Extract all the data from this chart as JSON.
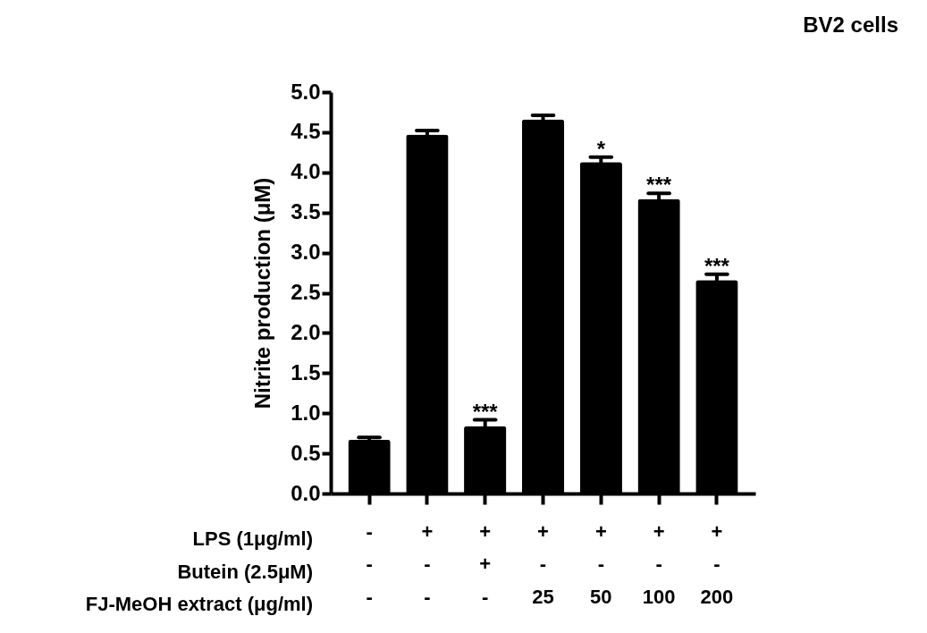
{
  "chart_data": {
    "type": "bar",
    "title": "BV2 cells",
    "ylabel": "Nitrite production (μM)",
    "categories": [
      "-\n-\n-",
      "+\n-\n-",
      "+\n+\n-",
      "+\n-\n25",
      "+\n-\n50",
      "+\n-\n100",
      "+\n-\n200"
    ],
    "values": [
      0.67,
      4.47,
      0.84,
      4.66,
      4.13,
      3.67,
      2.66
    ],
    "errors": [
      0.03,
      0.05,
      0.08,
      0.05,
      0.06,
      0.07,
      0.07
    ],
    "color": "#000000",
    "ylim": [
      0,
      5
    ],
    "yticks": [
      {
        "value": 0,
        "label": "0.0"
      },
      {
        "value": 0.5,
        "label": "0.5"
      },
      {
        "value": 1,
        "label": "1.0"
      },
      {
        "value": 1.5,
        "label": "1.5"
      },
      {
        "value": 2,
        "label": "2.0"
      },
      {
        "value": 2.5,
        "label": "2.5"
      },
      {
        "value": 3,
        "label": "3.0"
      },
      {
        "value": 3.5,
        "label": "3.5"
      },
      {
        "value": 4,
        "label": "4.0"
      },
      {
        "value": 4.5,
        "label": "4.5"
      },
      {
        "value": 5,
        "label": "5.0"
      }
    ],
    "grid": false,
    "annotations": [
      "LPS (1μg/ml)",
      "Butein (2.5μM)",
      "FJ-MeOH extract (μg/ml)",
      {
        "text": "***",
        "x": "+\n+\n-",
        "y": 0.915
      },
      {
        "text": "*",
        "x": "+\n-\n50",
        "y": 4.19
      },
      {
        "text": "***",
        "x": "+\n-\n100",
        "y": 3.74
      },
      {
        "text": "***",
        "x": "+\n-\n200",
        "y": 2.73
      }
    ]
  }
}
